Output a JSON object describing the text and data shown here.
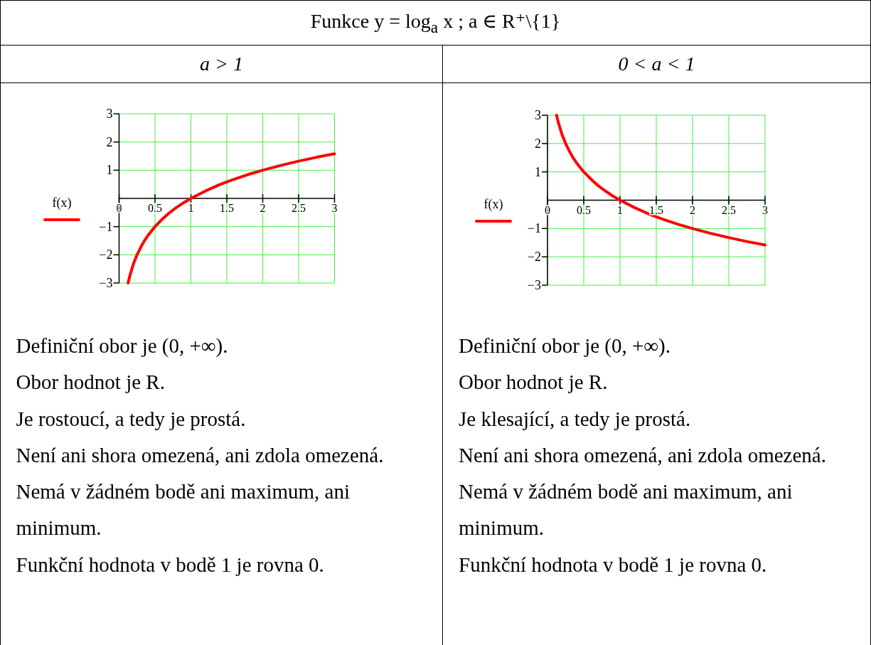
{
  "chart_data": [
    {
      "type": "other",
      "title": "Funkce y = log$_{a}$ x ; a ∈ R⁺\\{1}"
    },
    {
      "type": "line",
      "title": "a > 1",
      "x": [
        0.125,
        0.15,
        0.2,
        0.25,
        0.3,
        0.35,
        0.4,
        0.5,
        0.6,
        0.7,
        0.8,
        0.9,
        1,
        1.2,
        1.4,
        1.6,
        1.8,
        2,
        2.25,
        2.5,
        2.75,
        3
      ],
      "series": [
        {
          "name": "f(x)",
          "color": "#ff0000",
          "values": [
            -3,
            -2.74,
            -2.32,
            -2,
            -1.74,
            -1.51,
            -1.32,
            -1,
            -0.74,
            -0.51,
            -0.32,
            -0.15,
            0,
            0.26,
            0.49,
            0.68,
            0.85,
            1,
            1.17,
            1.32,
            1.46,
            1.58
          ]
        }
      ],
      "xlim": [
        0,
        3
      ],
      "xticks": [
        0,
        0.5,
        1,
        1.5,
        2,
        2.5,
        3
      ],
      "ylim": [
        -3,
        3
      ],
      "yticks": [
        {
          "value": -3,
          "label": "−3"
        },
        {
          "value": -2,
          "label": "−2"
        },
        {
          "value": -1,
          "label": "−1"
        },
        1,
        2,
        3
      ],
      "grid": true,
      "legend": "left",
      "marker": "none",
      "line_style": "solid",
      "annotations": [
        "Definiční obor je (0, +∞).",
        "Obor hodnot je R.",
        "Je rostoucí, a tedy je prostá.",
        "Není ani shora omezená, ani zdola omezená.",
        "Nemá v žádném bodě ani maximum, ani minimum.",
        "Funkční hodnota v bodě 1 je rovna 0."
      ]
    },
    {
      "type": "line",
      "title": "0 < a < 1",
      "x": [
        0.125,
        0.15,
        0.2,
        0.25,
        0.3,
        0.35,
        0.4,
        0.5,
        0.6,
        0.7,
        0.8,
        0.9,
        1,
        1.2,
        1.4,
        1.6,
        1.8,
        2,
        2.25,
        2.5,
        2.75,
        3
      ],
      "series": [
        {
          "name": "f(x)",
          "color": "#ff0000",
          "values": [
            3,
            2.74,
            2.32,
            2,
            1.74,
            1.51,
            1.32,
            1,
            0.74,
            0.51,
            0.32,
            0.15,
            0,
            -0.26,
            -0.49,
            -0.68,
            -0.85,
            -1,
            -1.17,
            -1.32,
            -1.46,
            -1.58
          ]
        }
      ],
      "xlim": [
        0,
        3
      ],
      "xticks": [
        0,
        0.5,
        1,
        1.5,
        2,
        2.5,
        3
      ],
      "ylim": [
        -3,
        3
      ],
      "yticks": [
        {
          "value": -3,
          "label": "−3"
        },
        {
          "value": -2,
          "label": "−2"
        },
        {
          "value": -1,
          "label": "−1"
        },
        1,
        2,
        3
      ],
      "grid": true,
      "legend": "left",
      "marker": "none",
      "line_style": "solid",
      "annotations": [
        "Definiční obor je (0, +∞).",
        "Obor hodnot je R.",
        "Je klesající, a tedy je prostá.",
        "Není ani shora omezená, ani zdola omezená.",
        "Nemá v žádném bodě ani maximum, ani minimum.",
        "Funkční hodnota v bodě 1 je rovna 0."
      ]
    }
  ]
}
